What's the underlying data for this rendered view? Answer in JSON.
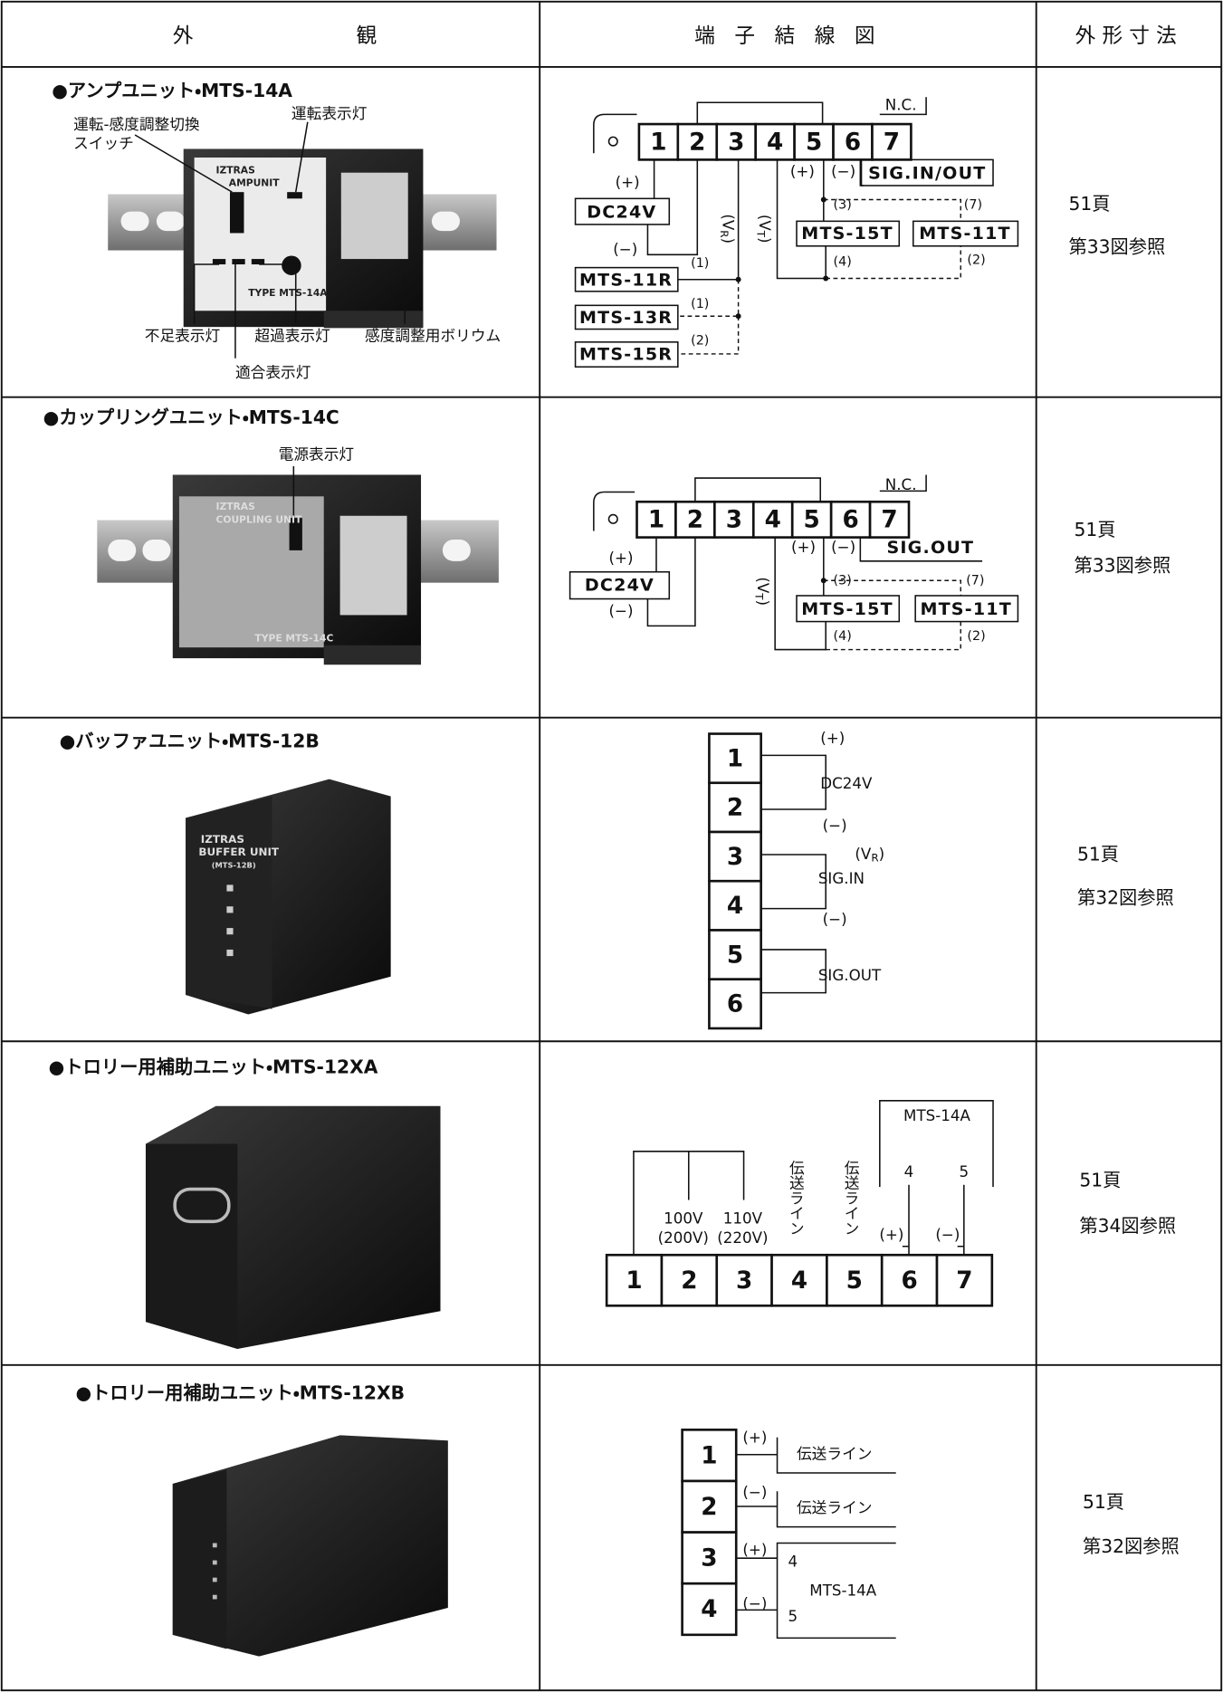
{
  "header": {
    "appearance": [
      "外",
      "観"
    ],
    "wiring": "端 子 結 線 図",
    "dimensions": "外形寸法"
  },
  "rows": [
    {
      "title": "●アンプユニット・MTS-14A",
      "photo_labels": [
        "運転-感度調整切換",
        "スイッチ",
        "運転表示灯",
        "不足表示灯",
        "超過表示灯",
        "感度調整用ボリウム",
        "適合表示灯"
      ],
      "photo_text": [
        "IZTRAS",
        "AMPUNIT",
        "TYPE MTS-14A"
      ],
      "diagram": {
        "terminals": [
          "1",
          "2",
          "3",
          "4",
          "5",
          "6",
          "7"
        ],
        "labels": [
          "N.C.",
          "(+)",
          "DC24V",
          "(−)",
          [
            "(V",
            "R",
            ")"
          ],
          [
            "(V",
            "T",
            ")"
          ],
          "(+)",
          "(−)",
          "SIG.IN/OUT",
          "(3)",
          "(7)",
          "MTS-15T",
          "MTS-11T",
          "(4)",
          "(2)",
          "MTS-11R",
          "(1)",
          "MTS-13R",
          "(1)",
          "MTS-15R",
          "(2)"
        ]
      },
      "size": {
        "page": "51頁",
        "figure": "第33図参照"
      }
    },
    {
      "title": "●カップリングユニット・MTS-14C",
      "photo_labels": [
        "電源表示灯"
      ],
      "photo_text": [
        "IZTRAS",
        "COUPLING UNIT",
        "TYPE MTS-14C"
      ],
      "diagram": {
        "terminals": [
          "1",
          "2",
          "3",
          "4",
          "5",
          "6",
          "7"
        ],
        "labels": [
          "N.C.",
          "(+)",
          "DC24V",
          "(−)",
          [
            "(V",
            "T",
            ")"
          ],
          "(+)",
          "(−)",
          "SIG.OUT",
          "(3)",
          "(7)",
          "MTS-15T",
          "MTS-11T",
          "(4)",
          "(2)"
        ]
      },
      "size": {
        "page": "51頁",
        "figure": "第33図参照"
      }
    },
    {
      "title": "●バッファユニット・MTS-12B",
      "photo_text": [
        "IZTRAS",
        "BUFFER UNIT",
        "(MTS-12B)"
      ],
      "diagram": {
        "terminals": [
          "1",
          "2",
          "3",
          "4",
          "5",
          "6"
        ],
        "labels": [
          "(+)",
          "DC24V",
          "(−)",
          [
            "(V",
            "R",
            ")"
          ],
          "SIG.IN",
          "(−)",
          "SIG.OUT"
        ]
      },
      "size": {
        "page": "51頁",
        "figure": "第32図参照"
      }
    },
    {
      "title": "●トロリー用補助ユニット・MTS-12XA",
      "diagram": {
        "terminals": [
          "1",
          "2",
          "3",
          "4",
          "5",
          "6",
          "7"
        ],
        "labels": [
          "100V",
          "(200V)",
          "110V",
          "(220V)",
          "伝送ライン",
          "伝送ライン",
          "MTS-14A",
          "4",
          "5",
          "(+)",
          "(−)"
        ]
      },
      "size": {
        "page": "51頁",
        "figure": "第34図参照"
      }
    },
    {
      "title": "●トロリー用補助ユニット・MTS-12XB",
      "diagram": {
        "terminals": [
          "1",
          "2",
          "3",
          "4"
        ],
        "labels": [
          "(+)",
          "伝送ライン",
          "(−)",
          "伝送ライン",
          "(+)",
          "4",
          "MTS-14A",
          "(−)",
          "5"
        ]
      },
      "size": {
        "page": "51頁",
        "figure": "第32図参照"
      }
    }
  ]
}
